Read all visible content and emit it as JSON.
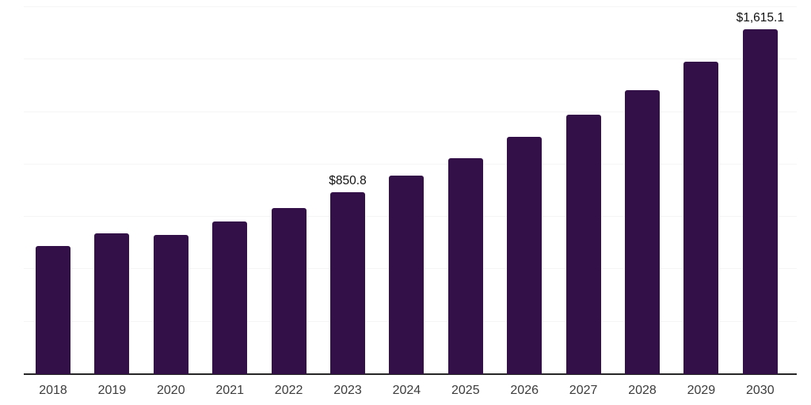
{
  "chart_data": {
    "type": "bar",
    "title": "",
    "xlabel": "",
    "ylabel": "",
    "categories": [
      "2018",
      "2019",
      "2020",
      "2021",
      "2022",
      "2023",
      "2024",
      "2025",
      "2026",
      "2027",
      "2028",
      "2029",
      "2030"
    ],
    "values": [
      601,
      660,
      651,
      716,
      778,
      850.8,
      929,
      1011,
      1110,
      1214,
      1328,
      1464,
      1615.1
    ],
    "annotations": [
      {
        "category": "2023",
        "text": "$850.8"
      },
      {
        "category": "2030",
        "text": "$1,615.1"
      }
    ],
    "ylim": [
      0,
      1718
    ],
    "grid": "horizontal",
    "gridline_count": 7,
    "legend": "none",
    "y_axis_ticks_visible": false,
    "colors": {
      "bar": "#331148",
      "axis_line": "#262626",
      "gridline": "#f5f5f5",
      "x_tick_label": "#3c3c3c",
      "value_label": "#111111",
      "background": "#ffffff"
    }
  }
}
